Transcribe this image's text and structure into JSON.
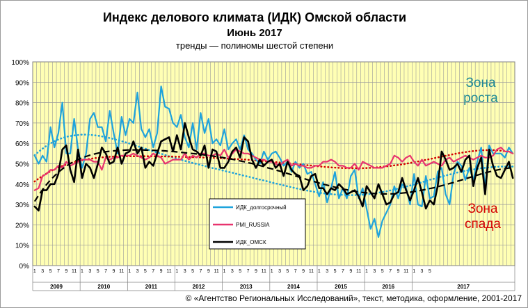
{
  "header": {
    "title": "Индекс делового климата (ИДК) Омской области",
    "subtitle": "Июнь 2017",
    "note": "тренды — полиномы шестой степени"
  },
  "zones": {
    "growth_line1": "Зона",
    "growth_line2": "роста",
    "decline_line1": "Зона",
    "decline_line2": "спада",
    "growth_color": "#1f8a96",
    "decline_color": "#d40000"
  },
  "footer": {
    "copyright": "© «Агентство Региональных Исследований», текст, методика, оформление, 2001-2017"
  },
  "chart_data": {
    "type": "line",
    "ylim": [
      0,
      100
    ],
    "y_ticks": [
      "0%",
      "10%",
      "20%",
      "30%",
      "40%",
      "50%",
      "60%",
      "70%",
      "80%",
      "90%",
      "100%"
    ],
    "month_ticks": [
      "1",
      "3",
      "5",
      "7",
      "9",
      "11"
    ],
    "last_year_month_ticks": [
      "1",
      "3",
      "5"
    ],
    "years": [
      "2009",
      "2010",
      "2011",
      "2012",
      "2013",
      "2014",
      "2015",
      "2016",
      "2017"
    ],
    "plot_background": "#ffffb4",
    "grid": true,
    "legend_position": "center-left",
    "series": [
      {
        "name": "ИДК_долгосрочный",
        "color": "#1ea3dc",
        "values": [
          54,
          50,
          54,
          51,
          68,
          58,
          65,
          80,
          55,
          55,
          72,
          57,
          48,
          55,
          72,
          75,
          68,
          68,
          61,
          76,
          65,
          55,
          73,
          64,
          72,
          70,
          85,
          67,
          63,
          67,
          58,
          65,
          88,
          78,
          77,
          70,
          68,
          74,
          63,
          58,
          70,
          57,
          75,
          65,
          72,
          60,
          62,
          59,
          67,
          57,
          60,
          62,
          57,
          64,
          57,
          55,
          52,
          50,
          56,
          52,
          55,
          56,
          53,
          49,
          51,
          46,
          51,
          48,
          50,
          45,
          46,
          40,
          34,
          41,
          31,
          38,
          46,
          33,
          38,
          33,
          44,
          47,
          33,
          38,
          28,
          18,
          23,
          14,
          22,
          26,
          30,
          39,
          33,
          40,
          38,
          30,
          45,
          30,
          29,
          44,
          33,
          34,
          46,
          48,
          35,
          30,
          45,
          51,
          49,
          42,
          48,
          42,
          51,
          58,
          38,
          59,
          55,
          55,
          55,
          53,
          58,
          55
        ]
      },
      {
        "name": "PMI_RUSSIA",
        "color": "#e8336e",
        "values": [
          37,
          38,
          44,
          45,
          47,
          47,
          49,
          48,
          51,
          49,
          50,
          51,
          52,
          52,
          52,
          51,
          51,
          47,
          53,
          52,
          53,
          53,
          54,
          54,
          54,
          55,
          54,
          53,
          52,
          53,
          55,
          54,
          53,
          50,
          51,
          52,
          52,
          52,
          55,
          52,
          54,
          53,
          55,
          55,
          54,
          54,
          55,
          54,
          57,
          53,
          55,
          57,
          56,
          55,
          55,
          54,
          53,
          52,
          52,
          51,
          51,
          50,
          49,
          51,
          52,
          49,
          50,
          49,
          49,
          48,
          48,
          49,
          49,
          51,
          51,
          52,
          51,
          49,
          49,
          48,
          48,
          50,
          47,
          51,
          50,
          49,
          48,
          48,
          48,
          49,
          50,
          54,
          53,
          51,
          53,
          54,
          51,
          49,
          52,
          49,
          50,
          51,
          50,
          49,
          52,
          53,
          51,
          52,
          53,
          54,
          53,
          52,
          53,
          54,
          53,
          53,
          54,
          57,
          58,
          56,
          56,
          55
        ]
      },
      {
        "name": "ИДК_ОМСК",
        "color": "#000000",
        "values": [
          29,
          27,
          37,
          37,
          40,
          40,
          45,
          57,
          59,
          47,
          41,
          57,
          43,
          50,
          48,
          43,
          50,
          58,
          55,
          50,
          51,
          58,
          50,
          55,
          56,
          61,
          55,
          58,
          48,
          51,
          49,
          55,
          61,
          62,
          63,
          56,
          64,
          57,
          70,
          63,
          57,
          56,
          54,
          59,
          48,
          57,
          56,
          48,
          48,
          51,
          56,
          58,
          53,
          63,
          61,
          52,
          48,
          52,
          49,
          51,
          52,
          48,
          50,
          44,
          51,
          47,
          45,
          44,
          37,
          39,
          44,
          45,
          38,
          38,
          35,
          38,
          37,
          40,
          38,
          35,
          36,
          37,
          34,
          29,
          39,
          36,
          33,
          40,
          35,
          30,
          31,
          35,
          36,
          43,
          37,
          32,
          37,
          43,
          36,
          28,
          32,
          30,
          39,
          56,
          52,
          47,
          48,
          50,
          46,
          52,
          54,
          39,
          48,
          53,
          35,
          57,
          49,
          44,
          43,
          47,
          51,
          43
        ]
      },
      {
        "name": "trend-idk-longterm",
        "color": "#1ea3dc",
        "style": "dotted",
        "values": [
          54.2,
          55.9,
          57.4,
          58.8,
          60.0,
          61.0,
          61.9,
          62.6,
          63.2,
          63.6,
          63.9,
          64.1,
          64.3,
          64.3,
          64.2,
          64.0,
          63.8,
          63.4,
          63.1,
          62.6,
          62.1,
          61.6,
          61.1,
          60.5,
          59.9,
          59.3,
          58.6,
          58.0,
          57.4,
          56.7,
          56.1,
          55.5,
          54.9,
          54.3,
          53.7,
          53.1,
          52.5,
          52.0,
          51.4,
          50.9,
          50.4,
          49.9,
          49.4,
          48.9,
          48.4,
          47.9,
          47.5,
          47.0,
          46.5,
          46.0,
          45.6,
          45.1,
          44.6,
          44.1,
          43.7,
          43.2,
          42.7,
          42.2,
          41.8,
          41.3,
          40.8,
          40.3,
          39.9,
          39.4,
          38.9,
          38.5,
          38.0,
          37.6,
          37.2,
          36.8,
          36.5,
          36.1,
          35.8,
          35.5,
          35.3,
          35.1,
          34.9,
          34.8,
          34.7,
          34.6,
          34.6,
          34.6,
          34.7,
          34.8,
          35.0,
          35.2,
          35.5,
          35.8,
          36.1,
          36.5,
          36.9,
          37.3,
          37.8,
          38.3,
          38.8,
          39.3,
          39.8,
          40.4,
          40.9,
          41.5,
          42.1,
          42.6,
          43.2,
          43.7,
          44.2,
          44.7,
          45.2,
          45.7,
          46.1,
          46.5,
          46.9,
          47.2,
          47.5,
          47.8,
          48.0,
          48.2,
          48.4,
          48.5,
          48.6,
          48.6,
          48.6,
          48.6
        ]
      },
      {
        "name": "trend-pmi",
        "color": "#d40000",
        "style": "dotted",
        "values": [
          41.3,
          42.7,
          44.0,
          45.2,
          46.3,
          47.3,
          48.1,
          48.9,
          49.6,
          50.3,
          50.8,
          51.3,
          51.7,
          52.1,
          52.4,
          52.7,
          52.9,
          53.1,
          53.3,
          53.4,
          53.5,
          53.6,
          53.6,
          53.7,
          53.7,
          53.7,
          53.7,
          53.7,
          53.7,
          53.7,
          53.7,
          53.6,
          53.6,
          53.6,
          53.5,
          53.5,
          53.4,
          53.4,
          53.3,
          53.3,
          53.2,
          53.2,
          53.1,
          53.0,
          53.0,
          52.9,
          52.8,
          52.7,
          52.6,
          52.5,
          52.4,
          52.3,
          52.2,
          52.1,
          51.9,
          51.8,
          51.6,
          51.5,
          51.3,
          51.2,
          51.0,
          50.8,
          50.6,
          50.4,
          50.2,
          50.1,
          49.9,
          49.7,
          49.5,
          49.3,
          49.1,
          48.9,
          48.7,
          48.5,
          48.4,
          48.2,
          48.1,
          48.0,
          47.9,
          47.8,
          47.8,
          47.8,
          47.8,
          47.8,
          47.9,
          48.0,
          48.1,
          48.3,
          48.5,
          48.7,
          48.9,
          49.2,
          49.4,
          49.7,
          50.0,
          50.4,
          50.7,
          51.1,
          51.5,
          51.9,
          52.3,
          52.7,
          53.1,
          53.5,
          53.9,
          54.3,
          54.7,
          55.1,
          55.4,
          55.7,
          56.0,
          56.2,
          56.4,
          56.6,
          56.7,
          56.7,
          56.7,
          56.6,
          56.4,
          56.2,
          55.8,
          55.4
        ]
      },
      {
        "name": "trend-idk-omsk",
        "color": "#000000",
        "style": "dashed",
        "values": [
          31.5,
          34.5,
          37.3,
          39.8,
          42.0,
          44.0,
          45.8,
          47.4,
          48.8,
          50.1,
          51.1,
          52.1,
          52.9,
          53.6,
          54.2,
          54.7,
          55.2,
          55.6,
          55.9,
          56.1,
          56.3,
          56.5,
          56.6,
          56.7,
          56.8,
          56.8,
          56.8,
          56.8,
          56.7,
          56.7,
          56.6,
          56.5,
          56.4,
          56.3,
          56.1,
          56.0,
          55.8,
          55.6,
          55.4,
          55.2,
          55.0,
          54.8,
          54.6,
          54.3,
          54.1,
          53.8,
          53.5,
          53.2,
          52.9,
          52.5,
          52.2,
          51.8,
          51.4,
          51.0,
          50.5,
          50.1,
          49.6,
          49.1,
          48.6,
          48.0,
          47.5,
          46.9,
          46.4,
          45.8,
          45.2,
          44.6,
          44.0,
          43.4,
          42.8,
          42.2,
          41.6,
          41.1,
          40.5,
          40.0,
          39.5,
          39.0,
          38.5,
          38.0,
          37.6,
          37.2,
          36.8,
          36.5,
          36.2,
          35.9,
          35.7,
          35.5,
          35.4,
          35.3,
          35.2,
          35.2,
          35.2,
          35.3,
          35.4,
          35.6,
          35.8,
          36.0,
          36.3,
          36.6,
          37.0,
          37.4,
          37.8,
          38.2,
          38.7,
          39.2,
          39.7,
          40.3,
          40.8,
          41.4,
          42.0,
          42.6,
          43.2,
          43.8,
          44.4,
          45.0,
          45.5,
          46.0,
          46.5,
          46.9,
          47.3,
          47.6,
          47.9,
          48.0
        ]
      }
    ]
  }
}
